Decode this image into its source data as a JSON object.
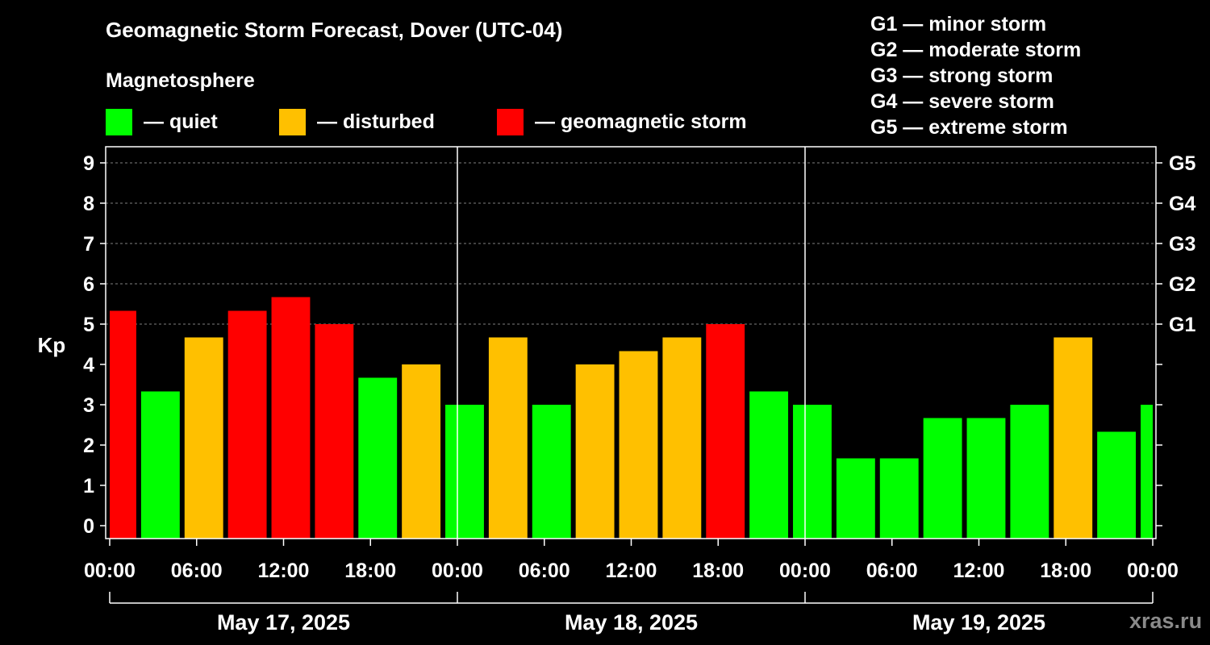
{
  "title": "Geomagnetic Storm Forecast, Dover (UTC-04)",
  "subtitle": "Magnetosphere",
  "legend": [
    {
      "label": "— quiet",
      "color": "#00ff00"
    },
    {
      "label": "— disturbed",
      "color": "#ffc000"
    },
    {
      "label": "— geomagnetic storm",
      "color": "#ff0000"
    }
  ],
  "g_scale": [
    {
      "label": "G1 — minor storm"
    },
    {
      "label": "G2 — moderate storm"
    },
    {
      "label": "G3 — strong storm"
    },
    {
      "label": "G4 — severe storm"
    },
    {
      "label": "G5 — extreme storm"
    }
  ],
  "brand": "xras.ru",
  "colors": {
    "quiet": "#00ff00",
    "disturbed": "#ffc000",
    "storm": "#ff0000",
    "axis": "#ffffff",
    "grid": "#808080"
  },
  "chart_data": {
    "type": "bar",
    "title": "Geomagnetic Storm Forecast, Dover (UTC-04)",
    "ylabel": "Kp",
    "ylim": [
      0,
      9
    ],
    "y_ticks": [
      "0",
      "1",
      "2",
      "3",
      "4",
      "5",
      "6",
      "7",
      "8",
      "9"
    ],
    "right_ticks": [
      {
        "kp": 5,
        "label": "G1"
      },
      {
        "kp": 6,
        "label": "G2"
      },
      {
        "kp": 7,
        "label": "G3"
      },
      {
        "kp": 8,
        "label": "G4"
      },
      {
        "kp": 9,
        "label": "G5"
      }
    ],
    "x_range_hours": [
      0,
      72
    ],
    "x_ticks": [
      {
        "hour": 0,
        "label": "00:00"
      },
      {
        "hour": 6,
        "label": "06:00"
      },
      {
        "hour": 12,
        "label": "12:00"
      },
      {
        "hour": 18,
        "label": "18:00"
      },
      {
        "hour": 24,
        "label": "00:00"
      },
      {
        "hour": 30,
        "label": "06:00"
      },
      {
        "hour": 36,
        "label": "12:00"
      },
      {
        "hour": 42,
        "label": "18:00"
      },
      {
        "hour": 48,
        "label": "00:00"
      },
      {
        "hour": 54,
        "label": "06:00"
      },
      {
        "hour": 60,
        "label": "12:00"
      },
      {
        "hour": 66,
        "label": "18:00"
      },
      {
        "hour": 72,
        "label": "00:00"
      }
    ],
    "days": [
      {
        "label": "May 17, 2025",
        "start_hour": 0,
        "end_hour": 24
      },
      {
        "label": "May 18, 2025",
        "start_hour": 24,
        "end_hour": 48
      },
      {
        "label": "May 19, 2025",
        "start_hour": 48,
        "end_hour": 72
      }
    ],
    "series": [
      {
        "name": "Kp",
        "bars": [
          {
            "start": 0,
            "end": 2,
            "kp": 5.33,
            "level": "storm"
          },
          {
            "start": 2,
            "end": 5,
            "kp": 3.33,
            "level": "quiet"
          },
          {
            "start": 5,
            "end": 8,
            "kp": 4.67,
            "level": "disturbed"
          },
          {
            "start": 8,
            "end": 11,
            "kp": 5.33,
            "level": "storm"
          },
          {
            "start": 11,
            "end": 14,
            "kp": 5.67,
            "level": "storm"
          },
          {
            "start": 14,
            "end": 17,
            "kp": 5.0,
            "level": "storm"
          },
          {
            "start": 17,
            "end": 20,
            "kp": 3.67,
            "level": "quiet"
          },
          {
            "start": 20,
            "end": 23,
            "kp": 4.0,
            "level": "disturbed"
          },
          {
            "start": 23,
            "end": 26,
            "kp": 3.0,
            "level": "quiet"
          },
          {
            "start": 26,
            "end": 29,
            "kp": 4.67,
            "level": "disturbed"
          },
          {
            "start": 29,
            "end": 32,
            "kp": 3.0,
            "level": "quiet"
          },
          {
            "start": 32,
            "end": 35,
            "kp": 4.0,
            "level": "disturbed"
          },
          {
            "start": 35,
            "end": 38,
            "kp": 4.33,
            "level": "disturbed"
          },
          {
            "start": 38,
            "end": 41,
            "kp": 4.67,
            "level": "disturbed"
          },
          {
            "start": 41,
            "end": 44,
            "kp": 5.0,
            "level": "storm"
          },
          {
            "start": 44,
            "end": 47,
            "kp": 3.33,
            "level": "quiet"
          },
          {
            "start": 47,
            "end": 50,
            "kp": 3.0,
            "level": "quiet"
          },
          {
            "start": 50,
            "end": 53,
            "kp": 1.67,
            "level": "quiet"
          },
          {
            "start": 53,
            "end": 56,
            "kp": 1.67,
            "level": "quiet"
          },
          {
            "start": 56,
            "end": 59,
            "kp": 2.67,
            "level": "quiet"
          },
          {
            "start": 59,
            "end": 62,
            "kp": 2.67,
            "level": "quiet"
          },
          {
            "start": 62,
            "end": 65,
            "kp": 3.0,
            "level": "quiet"
          },
          {
            "start": 65,
            "end": 68,
            "kp": 4.67,
            "level": "disturbed"
          },
          {
            "start": 68,
            "end": 71,
            "kp": 2.33,
            "level": "quiet"
          },
          {
            "start": 71,
            "end": 72,
            "kp": 3.0,
            "level": "quiet"
          }
        ]
      }
    ]
  }
}
